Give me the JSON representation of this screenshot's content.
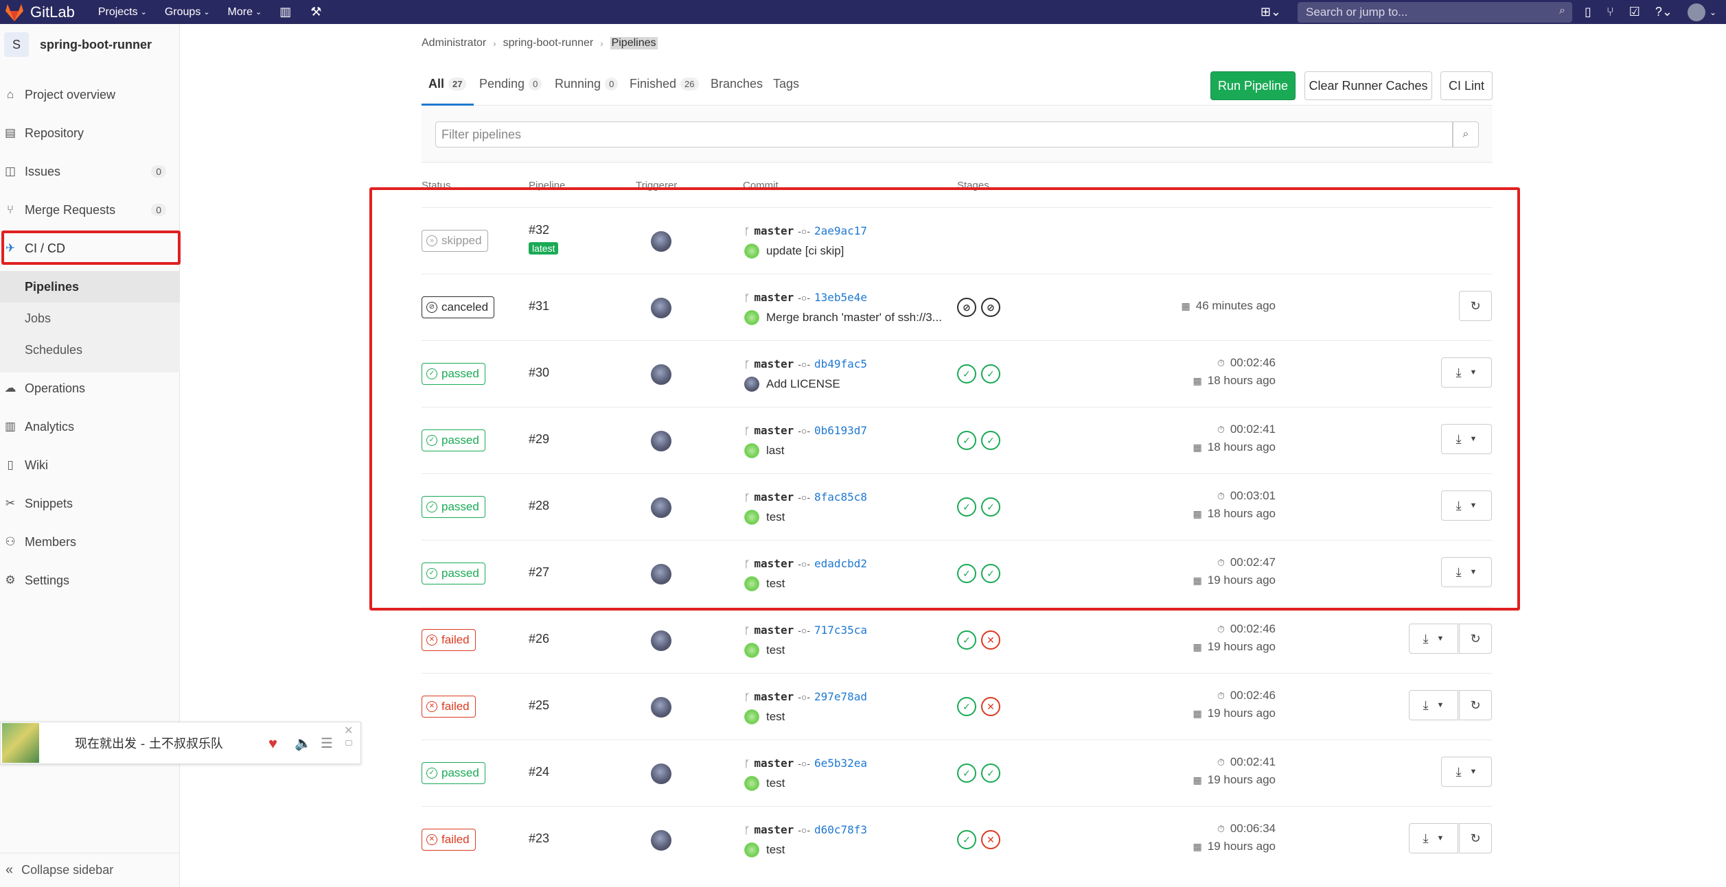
{
  "topbar": {
    "brand": "GitLab",
    "nav": [
      "Projects",
      "Groups",
      "More"
    ],
    "search_placeholder": "Search or jump to...",
    "colors": {
      "bg": "#292961"
    }
  },
  "sidebar": {
    "project_initial": "S",
    "project_name": "spring-boot-runner",
    "items": [
      {
        "label": "Project overview",
        "icon": "home-icon"
      },
      {
        "label": "Repository",
        "icon": "doc-icon"
      },
      {
        "label": "Issues",
        "icon": "issues-icon",
        "count": "0"
      },
      {
        "label": "Merge Requests",
        "icon": "merge-request-icon",
        "count": "0"
      },
      {
        "label": "CI / CD",
        "icon": "rocket-icon"
      },
      {
        "label": "Operations",
        "icon": "cloud-icon"
      },
      {
        "label": "Analytics",
        "icon": "chart-icon"
      },
      {
        "label": "Wiki",
        "icon": "book-icon"
      },
      {
        "label": "Snippets",
        "icon": "scissors-icon"
      },
      {
        "label": "Members",
        "icon": "users-icon"
      },
      {
        "label": "Settings",
        "icon": "gear-icon"
      }
    ],
    "sub_items": [
      "Pipelines",
      "Jobs",
      "Schedules"
    ],
    "collapse_label": "Collapse sidebar"
  },
  "breadcrumb": [
    "Administrator",
    "spring-boot-runner",
    "Pipelines"
  ],
  "tabs": [
    {
      "label": "All",
      "count": "27"
    },
    {
      "label": "Pending",
      "count": "0"
    },
    {
      "label": "Running",
      "count": "0"
    },
    {
      "label": "Finished",
      "count": "26"
    },
    {
      "label": "Branches",
      "count": ""
    },
    {
      "label": "Tags",
      "count": ""
    }
  ],
  "buttons": {
    "run_pipeline": "Run Pipeline",
    "clear_caches": "Clear Runner Caches",
    "ci_lint": "CI Lint"
  },
  "filter_placeholder": "Filter pipelines",
  "columns": [
    "Status",
    "Pipeline",
    "Triggerer",
    "Commit",
    "Stages"
  ],
  "pipelines": [
    {
      "status": "skipped",
      "id": "#32",
      "latest": "latest",
      "branch": "master",
      "sha": "2ae9ac17",
      "message": "update [ci skip]",
      "stages": [],
      "duration": "",
      "finished": "",
      "actions": "none"
    },
    {
      "status": "canceled",
      "id": "#31",
      "branch": "master",
      "sha": "13eb5e4e",
      "message": "Merge branch 'master' of ssh://3...",
      "stages": [
        "cancel",
        "cancel"
      ],
      "duration": "",
      "finished": "46 minutes ago",
      "actions": "retry"
    },
    {
      "status": "passed",
      "id": "#30",
      "branch": "master",
      "sha": "db49fac5",
      "message": "Add LICENSE",
      "photo": true,
      "stages": [
        "ok",
        "ok"
      ],
      "duration": "00:02:46",
      "finished": "18 hours ago",
      "actions": "download"
    },
    {
      "status": "passed",
      "id": "#29",
      "branch": "master",
      "sha": "0b6193d7",
      "message": "last",
      "stages": [
        "ok",
        "ok"
      ],
      "duration": "00:02:41",
      "finished": "18 hours ago",
      "actions": "download"
    },
    {
      "status": "passed",
      "id": "#28",
      "branch": "master",
      "sha": "8fac85c8",
      "message": "test",
      "stages": [
        "ok",
        "ok"
      ],
      "duration": "00:03:01",
      "finished": "18 hours ago",
      "actions": "download"
    },
    {
      "status": "passed",
      "id": "#27",
      "branch": "master",
      "sha": "edadcbd2",
      "message": "test",
      "stages": [
        "ok",
        "ok"
      ],
      "duration": "00:02:47",
      "finished": "19 hours ago",
      "actions": "download"
    },
    {
      "status": "failed",
      "id": "#26",
      "branch": "master",
      "sha": "717c35ca",
      "message": "test",
      "stages": [
        "ok",
        "fail"
      ],
      "duration": "00:02:46",
      "finished": "19 hours ago",
      "actions": "both"
    },
    {
      "status": "failed",
      "id": "#25",
      "branch": "master",
      "sha": "297e78ad",
      "message": "test",
      "stages": [
        "ok",
        "fail"
      ],
      "duration": "00:02:46",
      "finished": "19 hours ago",
      "actions": "both"
    },
    {
      "status": "passed",
      "id": "#24",
      "branch": "master",
      "sha": "6e5b32ea",
      "message": "test",
      "stages": [
        "ok",
        "ok"
      ],
      "duration": "00:02:41",
      "finished": "19 hours ago",
      "actions": "download"
    },
    {
      "status": "failed",
      "id": "#23",
      "branch": "master",
      "sha": "d60c78f3",
      "message": "test",
      "stages": [
        "ok",
        "fail"
      ],
      "duration": "00:06:34",
      "finished": "19 hours ago",
      "actions": "both"
    }
  ],
  "music_player": {
    "title": "现在就出发 - 土不叔叔乐队"
  }
}
